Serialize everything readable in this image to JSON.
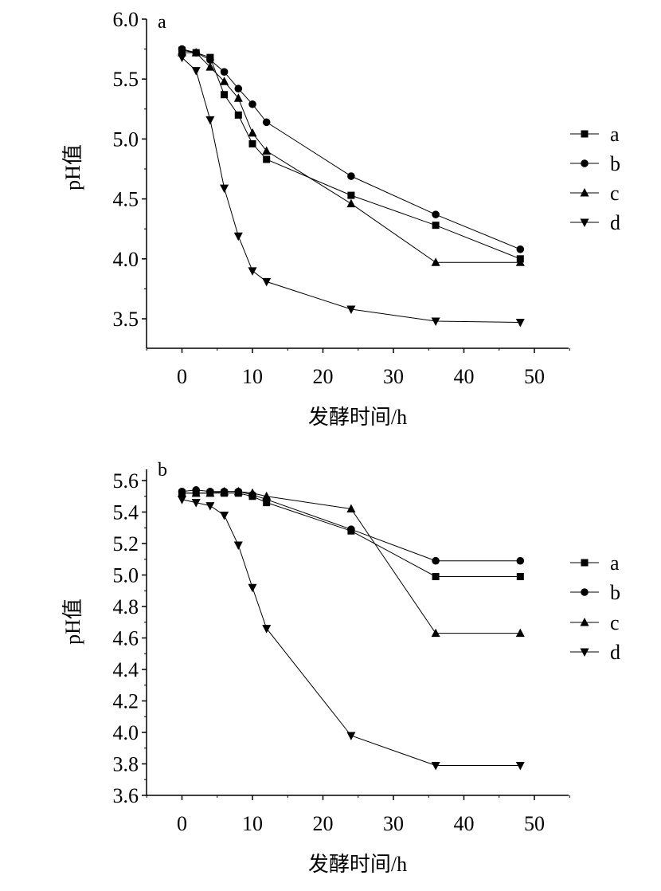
{
  "chart_data": [
    {
      "type": "line",
      "panel_label": "a",
      "xlabel": "发酵时间/h",
      "ylabel": "pH值",
      "xlim": [
        -5,
        55
      ],
      "ylim": [
        3.25,
        6.0
      ],
      "x_ticks": [
        0,
        10,
        20,
        30,
        40,
        50
      ],
      "y_ticks": [
        3.5,
        4.0,
        4.5,
        5.0,
        5.5,
        6.0
      ],
      "y_tick_decimals": 1,
      "legend_position": "right",
      "x": [
        0,
        2,
        4,
        6,
        8,
        10,
        12,
        24,
        36,
        48
      ],
      "series": [
        {
          "name": "a",
          "marker": "square",
          "values": [
            5.74,
            5.72,
            5.68,
            5.37,
            5.2,
            4.96,
            4.83,
            4.53,
            4.28,
            4.0
          ]
        },
        {
          "name": "b",
          "marker": "circle",
          "values": [
            5.75,
            5.72,
            5.66,
            5.56,
            5.42,
            5.29,
            5.14,
            4.69,
            4.37,
            4.08
          ]
        },
        {
          "name": "c",
          "marker": "triangle-up",
          "values": [
            5.72,
            5.72,
            5.6,
            5.48,
            5.34,
            5.05,
            4.9,
            4.46,
            3.97,
            3.97
          ]
        },
        {
          "name": "d",
          "marker": "triangle-down",
          "values": [
            5.68,
            5.57,
            5.16,
            4.59,
            4.19,
            3.9,
            3.81,
            3.58,
            3.48,
            3.47
          ]
        }
      ]
    },
    {
      "type": "line",
      "panel_label": "b",
      "xlabel": "发酵时间/h",
      "ylabel": "pH值",
      "xlim": [
        -5,
        55
      ],
      "ylim": [
        3.6,
        5.65
      ],
      "x_ticks": [
        0,
        10,
        20,
        30,
        40,
        50
      ],
      "y_ticks": [
        3.6,
        3.8,
        4.0,
        4.2,
        4.4,
        4.6,
        4.8,
        5.0,
        5.2,
        5.4,
        5.6
      ],
      "y_tick_decimals": 1,
      "legend_position": "right",
      "x": [
        0,
        2,
        4,
        6,
        8,
        10,
        12,
        24,
        36,
        48
      ],
      "series": [
        {
          "name": "a",
          "marker": "square",
          "values": [
            5.52,
            5.52,
            5.52,
            5.52,
            5.52,
            5.5,
            5.46,
            5.28,
            4.99,
            4.99
          ]
        },
        {
          "name": "b",
          "marker": "circle",
          "values": [
            5.53,
            5.54,
            5.53,
            5.53,
            5.53,
            5.51,
            5.48,
            5.29,
            5.09,
            5.09
          ]
        },
        {
          "name": "c",
          "marker": "triangle-up",
          "values": [
            5.52,
            5.52,
            5.52,
            5.53,
            5.53,
            5.52,
            5.5,
            5.42,
            4.63,
            4.63
          ]
        },
        {
          "name": "d",
          "marker": "triangle-down",
          "values": [
            5.48,
            5.46,
            5.44,
            5.38,
            5.19,
            4.92,
            4.66,
            3.98,
            3.79,
            3.79
          ]
        }
      ]
    }
  ]
}
